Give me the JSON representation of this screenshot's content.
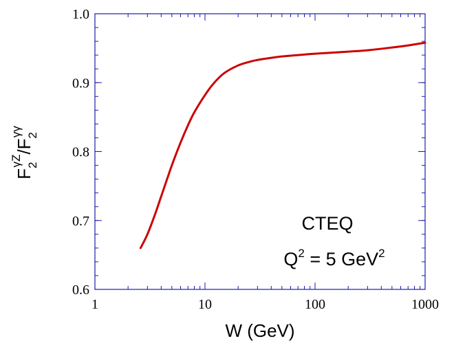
{
  "chart_data": {
    "type": "line",
    "xscale": "log",
    "xlim": [
      1,
      1000
    ],
    "ylim": [
      0.6,
      1.0
    ],
    "xlabel": "W (GeV)",
    "ylabel": {
      "base": "F",
      "sub1": "2",
      "sup1": "γZ",
      "slash": "/F",
      "sub2": "2",
      "sup2": "γγ"
    },
    "xticks": [
      1,
      10,
      100,
      1000
    ],
    "xtick_labels": [
      "1",
      "10",
      "100",
      "1000"
    ],
    "yticks": [
      0.6,
      0.7,
      0.8,
      0.9,
      1.0
    ],
    "ytick_labels": [
      "0.6",
      "0.7",
      "0.8",
      "0.9",
      "1.0"
    ],
    "annotation": {
      "line1": "CTEQ",
      "line2_pre": "Q",
      "line2_sup": "2",
      "line2_mid": " = 5 GeV",
      "line2_sup2": "2"
    },
    "series": [
      {
        "color": "#cc0000",
        "points": [
          [
            2.6,
            0.66
          ],
          [
            3.0,
            0.68
          ],
          [
            3.5,
            0.708
          ],
          [
            4.0,
            0.735
          ],
          [
            5.0,
            0.78
          ],
          [
            6.0,
            0.813
          ],
          [
            7.0,
            0.838
          ],
          [
            8.0,
            0.857
          ],
          [
            10.0,
            0.882
          ],
          [
            12.0,
            0.899
          ],
          [
            15.0,
            0.914
          ],
          [
            20.0,
            0.925
          ],
          [
            25.0,
            0.93
          ],
          [
            30.0,
            0.933
          ],
          [
            40.0,
            0.936
          ],
          [
            50.0,
            0.938
          ],
          [
            70.0,
            0.94
          ],
          [
            100.0,
            0.942
          ],
          [
            200.0,
            0.945
          ],
          [
            300.0,
            0.947
          ],
          [
            500.0,
            0.951
          ],
          [
            700.0,
            0.954
          ],
          [
            1000.0,
            0.958
          ]
        ]
      }
    ],
    "axis_color": "#1a1aaa"
  }
}
